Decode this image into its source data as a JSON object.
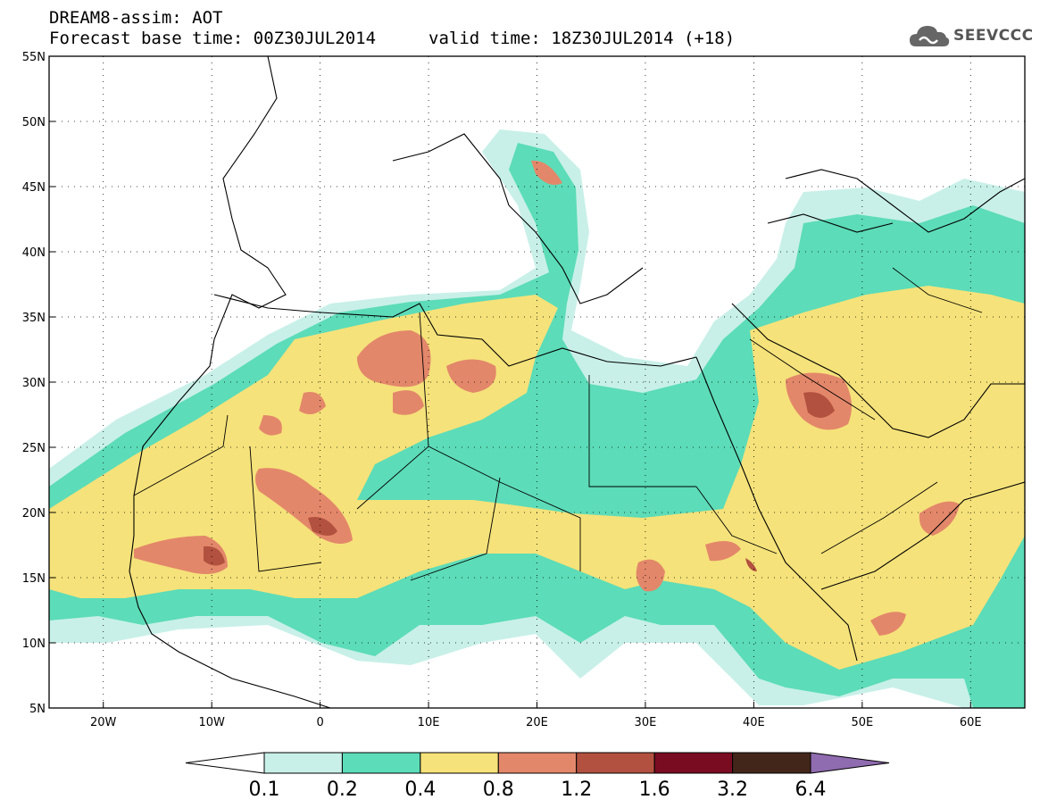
{
  "header": {
    "title": "DREAM8-assim: AOT",
    "base_time": "Forecast base time: 00Z30JUL2014",
    "valid_time": "valid time: 18Z30JUL2014 (+18)"
  },
  "logo": {
    "text": "SEEVCCC",
    "icon": "cloud-icon"
  },
  "map": {
    "lon_range": [
      -25,
      65
    ],
    "lat_range": [
      5,
      55
    ],
    "lat_ticks": [
      "55N",
      "50N",
      "45N",
      "40N",
      "35N",
      "30N",
      "25N",
      "20N",
      "15N",
      "10N",
      "5N"
    ],
    "lon_ticks": [
      "20W",
      "10W",
      "0",
      "10E",
      "20E",
      "30E",
      "40E",
      "50E",
      "60E"
    ]
  },
  "colorbar": {
    "colors": [
      "#c8f0e8",
      "#5cdcb8",
      "#f5e27a",
      "#e3876a",
      "#b2513f",
      "#7a0c22",
      "#43261a",
      "#8f6bb0"
    ],
    "labels": [
      "0.1",
      "0.2",
      "0.4",
      "0.8",
      "1.2",
      "1.6",
      "3.2",
      "6.4"
    ]
  }
}
